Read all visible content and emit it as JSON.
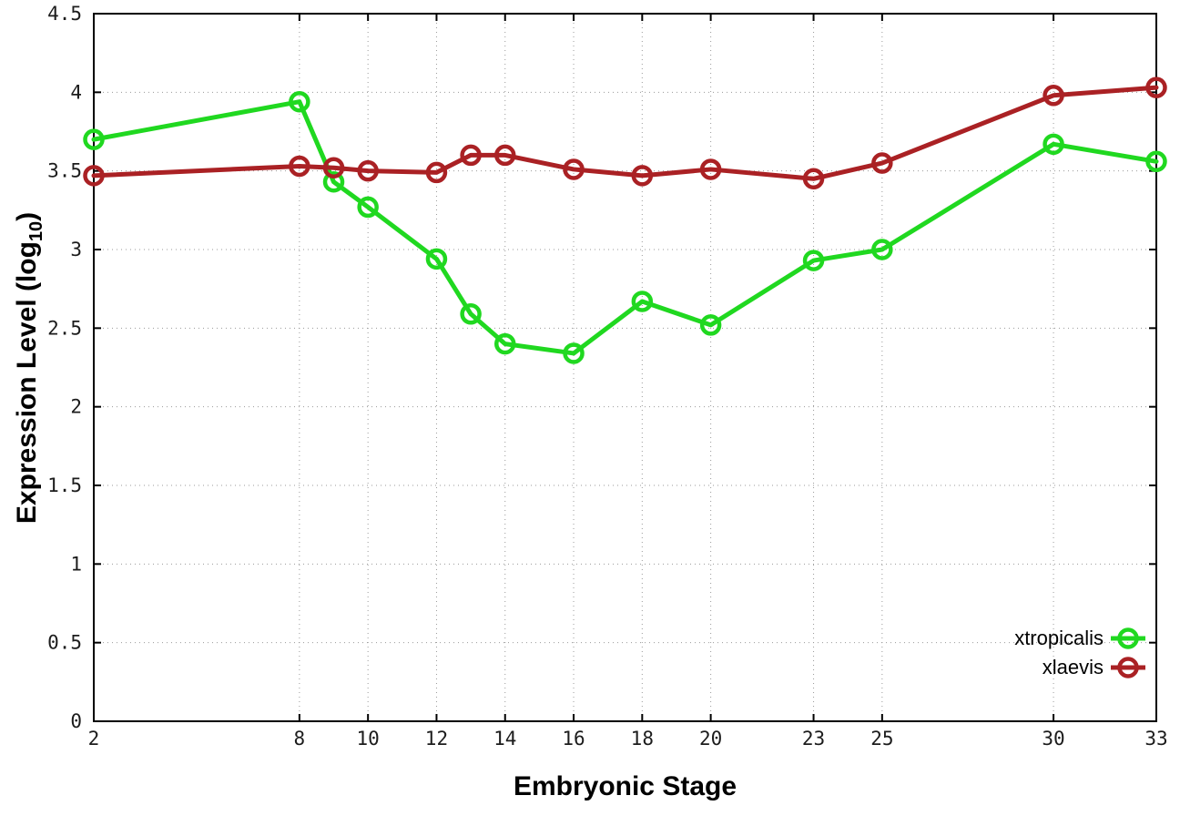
{
  "chart_data": {
    "type": "line",
    "x": [
      2,
      8,
      9,
      10,
      12,
      13,
      14,
      16,
      18,
      20,
      23,
      25,
      30,
      33
    ],
    "series": [
      {
        "name": "xtropicalis",
        "color": "#20d820",
        "values": [
          3.7,
          3.94,
          3.43,
          3.27,
          2.94,
          2.59,
          2.4,
          2.34,
          2.67,
          2.52,
          2.93,
          3.0,
          3.67,
          3.56
        ]
      },
      {
        "name": "xlaevis",
        "color": "#aa2124",
        "values": [
          3.47,
          3.53,
          3.52,
          3.5,
          3.49,
          3.6,
          3.6,
          3.51,
          3.47,
          3.51,
          3.45,
          3.55,
          3.98,
          4.03
        ]
      }
    ],
    "title": "",
    "xlabel": "Embryonic Stage",
    "ylabel": "Expression Level (log10)",
    "ylabel_parts": {
      "pre": "Expression Level (log",
      "sub": "10",
      "post": ")"
    },
    "xlim": [
      2,
      33
    ],
    "ylim": [
      0,
      4.5
    ],
    "xticks": [
      2,
      8,
      10,
      12,
      14,
      16,
      18,
      20,
      23,
      25,
      30,
      33
    ],
    "xtick_labels": [
      "2",
      "8",
      "10",
      "12",
      "14",
      "16",
      "18",
      "20",
      "23",
      "25",
      "30",
      "33"
    ],
    "yticks": [
      0,
      0.5,
      1,
      1.5,
      2,
      2.5,
      3,
      3.5,
      4,
      4.5
    ],
    "ytick_labels": [
      "0",
      "0.5",
      "1",
      "1.5",
      "2",
      "2.5",
      "3",
      "3.5",
      "4",
      "4.5"
    ],
    "grid": true,
    "legend_position": "bottom-right",
    "legend": [
      "xtropicalis",
      "xlaevis"
    ],
    "marker": "open-circle",
    "axis_color": "#000000",
    "grid_color": "#9a9a9a",
    "background_color": "#ffffff"
  }
}
